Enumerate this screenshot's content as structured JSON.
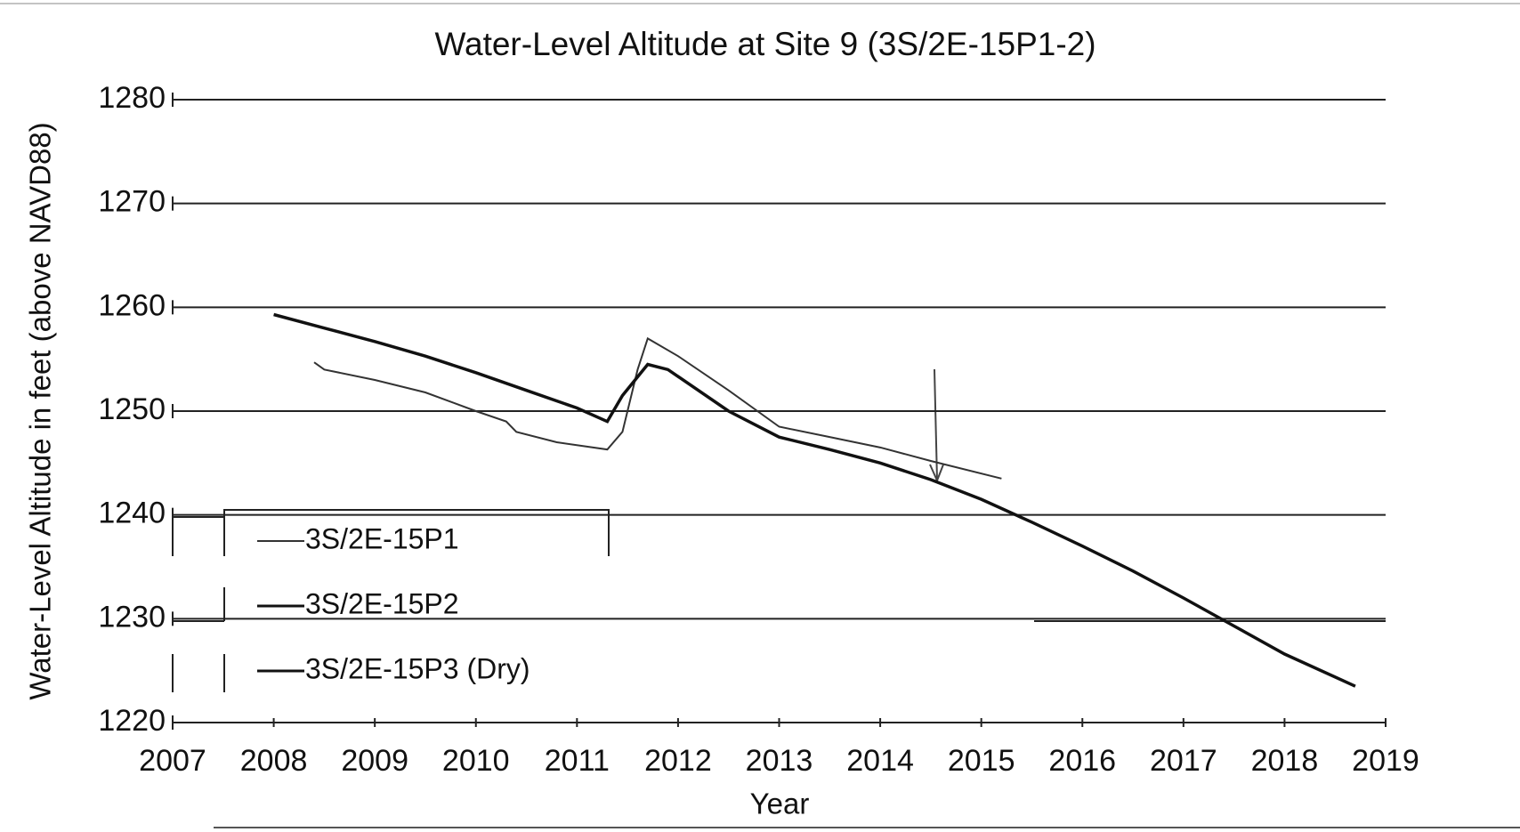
{
  "chart_data": {
    "type": "line",
    "title": "Water-Level Altitude at Site 9 (3S/2E-15P1-2)",
    "x_label": "Year",
    "y_label": "Water-Level Altitude in feet (above NAVD88)",
    "xlim": [
      2007,
      2019
    ],
    "xticks": [
      2007,
      2008,
      2009,
      2010,
      2011,
      2012,
      2013,
      2014,
      2015,
      2016,
      2017,
      2018,
      2019
    ],
    "ylim": [
      1220,
      1280
    ],
    "yticks": [
      1220,
      1230,
      1240,
      1250,
      1260,
      1270,
      1280
    ],
    "grid": true,
    "series": [
      {
        "name": "3S/2E-15P1",
        "color": "#333333",
        "x": [
          2008.4,
          2008.5,
          2009,
          2009.5,
          2010,
          2010.3,
          2010.4,
          2010.8,
          2011.3,
          2011.45,
          2011.6,
          2011.7,
          2012,
          2012.5,
          2013,
          2013.5,
          2014,
          2014.5,
          2015.2
        ],
        "values": [
          1254.7,
          1254,
          1253,
          1251.8,
          1250,
          1249,
          1248,
          1247,
          1246.3,
          1248,
          1254,
          1257,
          1255.3,
          1252,
          1248.5,
          1247.5,
          1246.5,
          1245.2,
          1243.5
        ]
      },
      {
        "name": "3S/2E-15P2",
        "color": "#111111",
        "x": [
          2008,
          2008.5,
          2009,
          2009.5,
          2010,
          2010.5,
          2011,
          2011.3,
          2011.45,
          2011.7,
          2011.9,
          2012.5,
          2013,
          2013.5,
          2014,
          2014.5,
          2015,
          2015.5,
          2016,
          2016.5,
          2017,
          2017.5,
          2018,
          2018.7
        ],
        "values": [
          1259.3,
          1258,
          1256.7,
          1255.3,
          1253.7,
          1252,
          1250.3,
          1249,
          1251.5,
          1254.5,
          1254,
          1250,
          1247.5,
          1246.3,
          1245,
          1243.4,
          1241.5,
          1239.3,
          1237,
          1234.6,
          1232,
          1229.3,
          1226.6,
          1223.5
        ]
      },
      {
        "name": "3S/2E-15P3 (Dry)",
        "color": "#111111",
        "x": [],
        "values": []
      }
    ]
  }
}
